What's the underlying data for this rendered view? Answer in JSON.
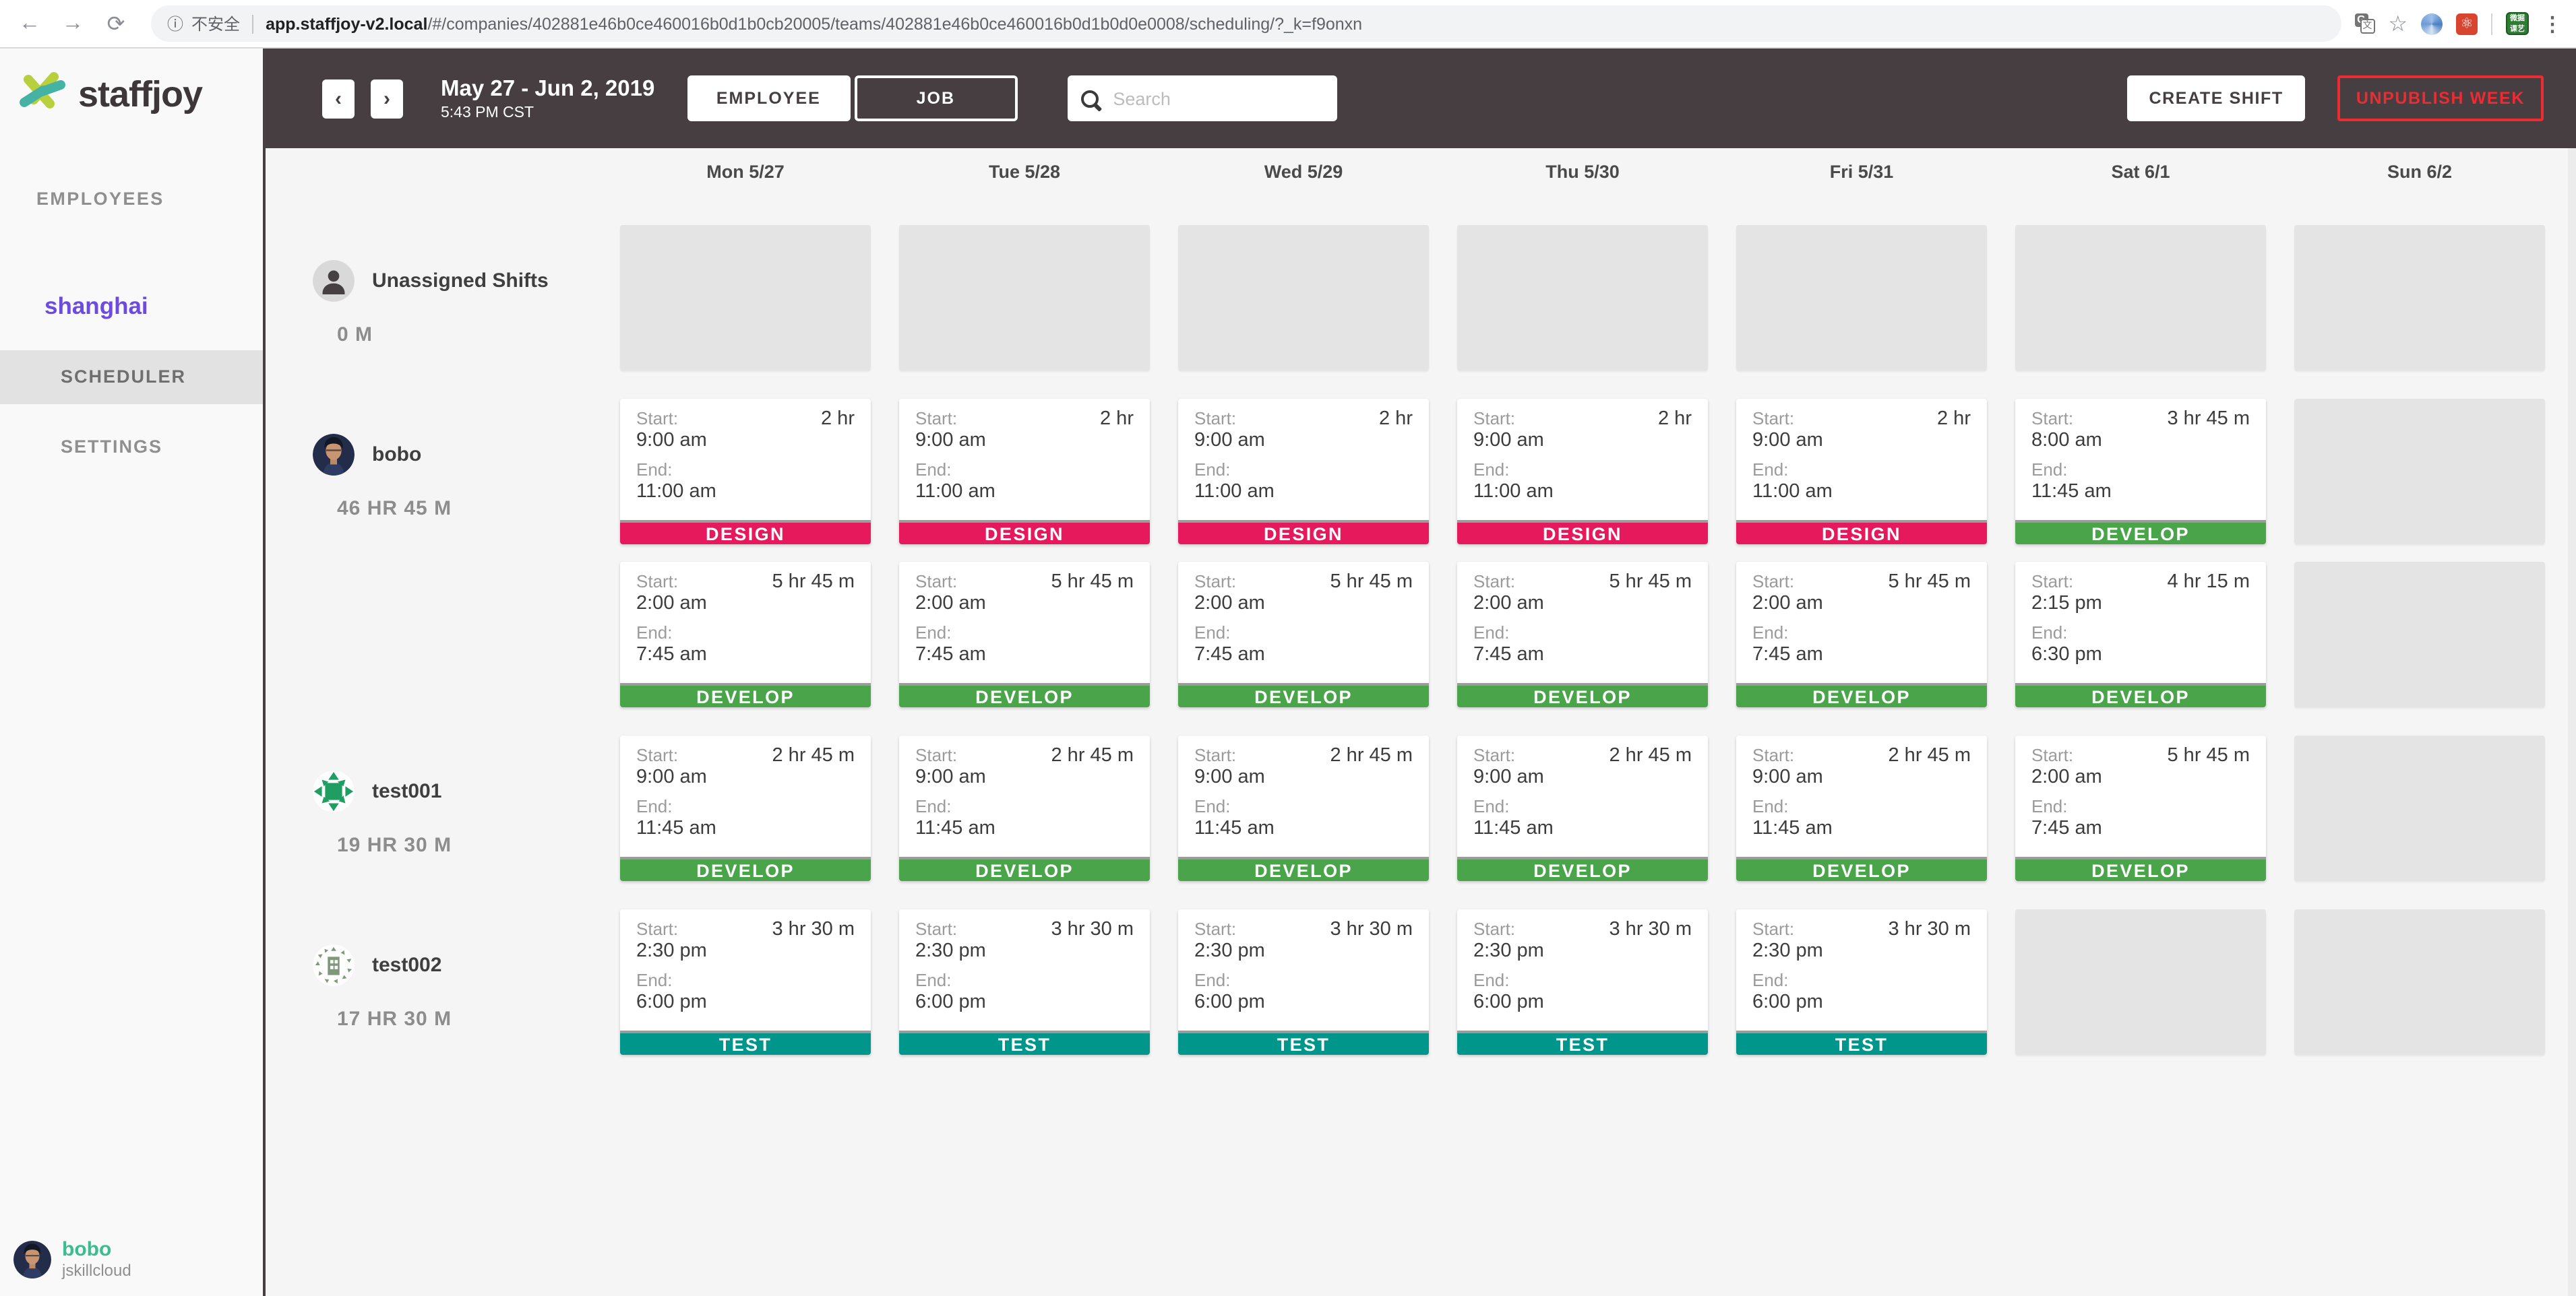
{
  "browser": {
    "back_icon": "←",
    "forward_icon": "→",
    "reload_icon": "⟳",
    "info_icon": "ⓘ",
    "security_label": "不安全",
    "url_domain": "app.staffjoy-v2.local",
    "url_path": "/#/companies/402881e46b0ce460016b0d1b0cb20005/teams/402881e46b0ce460016b0d1b0d0e0008/scheduling/?_k=f9onxn",
    "translate_g": "G",
    "translate_wen": "文",
    "star_icon": "☆",
    "ext_red_glyph": "⚛",
    "ext_green_line1": "微掘",
    "ext_green_line2": "课艺",
    "menu_dots": "⋮"
  },
  "sidebar": {
    "logo_text": "staffjoy",
    "nav_employees": "EMPLOYEES",
    "team_name": "shanghai",
    "team_nav": [
      {
        "label": "SCHEDULER",
        "active": true
      },
      {
        "label": "SETTINGS",
        "active": false
      }
    ],
    "user": {
      "name": "bobo",
      "company": "jskillcloud"
    }
  },
  "toolbar": {
    "prev_icon": "‹",
    "next_icon": "›",
    "date_range": "May 27 - Jun 2, 2019",
    "time": "5:43 PM CST",
    "view_buttons": [
      {
        "label": "EMPLOYEE",
        "active": true
      },
      {
        "label": "JOB",
        "active": false
      }
    ],
    "search_placeholder": "Search",
    "create_shift_label": "CREATE SHIFT",
    "unpublish_label": "UNPUBLISH WEEK"
  },
  "colors": {
    "header_bg": "#463e40",
    "accent_red": "#ed2b32",
    "brand_teal": "#3bbd8d",
    "team_purple": "#6d4be0",
    "job_design": "#e7195d",
    "job_develop": "#4aa44a",
    "job_test": "#00968c"
  },
  "schedule": {
    "start_label": "Start:",
    "end_label": "End:",
    "days": [
      "Mon 5/27",
      "Tue 5/28",
      "Wed 5/29",
      "Thu 5/30",
      "Fri 5/31",
      "Sat 6/1",
      "Sun 6/2"
    ],
    "job_colors": {
      "DESIGN": "#e7195d",
      "DEVELOP": "#4aa44a",
      "TEST": "#00968c"
    },
    "rows": [
      {
        "name": "Unassigned Shifts",
        "hours": "0 M",
        "avatar": "person",
        "lines": [
          [
            {
              "placeholder": true
            },
            {
              "placeholder": true
            },
            {
              "placeholder": true
            },
            {
              "placeholder": true
            },
            {
              "placeholder": true
            },
            {
              "placeholder": true
            },
            {
              "placeholder": true
            }
          ]
        ]
      },
      {
        "name": "bobo",
        "hours": "46 HR 45 M",
        "avatar": "photo",
        "lines": [
          [
            {
              "job": "DESIGN",
              "start": "9:00 am",
              "end": "11:00 am",
              "duration": "2 hr"
            },
            {
              "job": "DESIGN",
              "start": "9:00 am",
              "end": "11:00 am",
              "duration": "2 hr"
            },
            {
              "job": "DESIGN",
              "start": "9:00 am",
              "end": "11:00 am",
              "duration": "2 hr"
            },
            {
              "job": "DESIGN",
              "start": "9:00 am",
              "end": "11:00 am",
              "duration": "2 hr"
            },
            {
              "job": "DESIGN",
              "start": "9:00 am",
              "end": "11:00 am",
              "duration": "2 hr"
            },
            {
              "job": "DEVELOP",
              "start": "8:00 am",
              "end": "11:45 am",
              "duration": "3 hr 45 m"
            },
            {
              "placeholder": true
            }
          ],
          [
            {
              "job": "DEVELOP",
              "start": "2:00 am",
              "end": "7:45 am",
              "duration": "5 hr 45 m"
            },
            {
              "job": "DEVELOP",
              "start": "2:00 am",
              "end": "7:45 am",
              "duration": "5 hr 45 m"
            },
            {
              "job": "DEVELOP",
              "start": "2:00 am",
              "end": "7:45 am",
              "duration": "5 hr 45 m"
            },
            {
              "job": "DEVELOP",
              "start": "2:00 am",
              "end": "7:45 am",
              "duration": "5 hr 45 m"
            },
            {
              "job": "DEVELOP",
              "start": "2:00 am",
              "end": "7:45 am",
              "duration": "5 hr 45 m"
            },
            {
              "job": "DEVELOP",
              "start": "2:15 pm",
              "end": "6:30 pm",
              "duration": "4 hr 15 m"
            },
            {
              "placeholder": true
            }
          ]
        ]
      },
      {
        "name": "test001",
        "hours": "19 HR 30 M",
        "avatar": "identicon-emerald",
        "lines": [
          [
            {
              "job": "DEVELOP",
              "start": "9:00 am",
              "end": "11:45 am",
              "duration": "2 hr 45 m"
            },
            {
              "job": "DEVELOP",
              "start": "9:00 am",
              "end": "11:45 am",
              "duration": "2 hr 45 m"
            },
            {
              "job": "DEVELOP",
              "start": "9:00 am",
              "end": "11:45 am",
              "duration": "2 hr 45 m"
            },
            {
              "job": "DEVELOP",
              "start": "9:00 am",
              "end": "11:45 am",
              "duration": "2 hr 45 m"
            },
            {
              "job": "DEVELOP",
              "start": "9:00 am",
              "end": "11:45 am",
              "duration": "2 hr 45 m"
            },
            {
              "job": "DEVELOP",
              "start": "2:00 am",
              "end": "7:45 am",
              "duration": "5 hr 45 m"
            },
            {
              "placeholder": true
            }
          ]
        ]
      },
      {
        "name": "test002",
        "hours": "17 HR 30 M",
        "avatar": "identicon-sage",
        "lines": [
          [
            {
              "job": "TEST",
              "start": "2:30 pm",
              "end": "6:00 pm",
              "duration": "3 hr 30 m"
            },
            {
              "job": "TEST",
              "start": "2:30 pm",
              "end": "6:00 pm",
              "duration": "3 hr 30 m"
            },
            {
              "job": "TEST",
              "start": "2:30 pm",
              "end": "6:00 pm",
              "duration": "3 hr 30 m"
            },
            {
              "job": "TEST",
              "start": "2:30 pm",
              "end": "6:00 pm",
              "duration": "3 hr 30 m"
            },
            {
              "job": "TEST",
              "start": "2:30 pm",
              "end": "6:00 pm",
              "duration": "3 hr 30 m"
            },
            {
              "placeholder": true
            },
            {
              "placeholder": true
            }
          ]
        ]
      }
    ]
  }
}
